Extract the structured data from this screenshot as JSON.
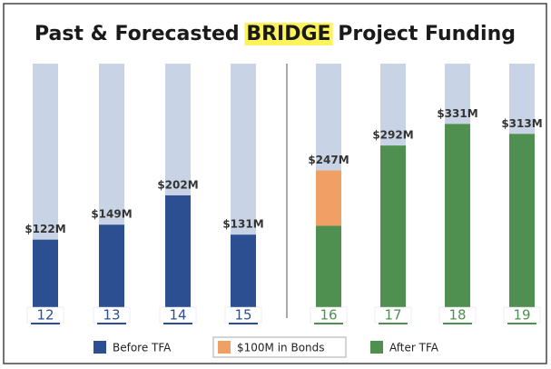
{
  "chart_data": {
    "type": "bar",
    "title": [
      "Past & Forecasted",
      "BRIDGE",
      "Project Funding"
    ],
    "categories": [
      "12",
      "13",
      "14",
      "15",
      "16",
      "17",
      "18",
      "19"
    ],
    "series": [
      {
        "name": "Before TFA",
        "color": "#2b4f91",
        "values": [
          122,
          149,
          202,
          131,
          null,
          null,
          null,
          null
        ]
      },
      {
        "name": "$100M in Bonds",
        "color": "#f0a065",
        "values": [
          null,
          null,
          null,
          null,
          100,
          null,
          null,
          null
        ]
      },
      {
        "name": "After TFA",
        "color": "#4f8f4f",
        "values": [
          null,
          null,
          null,
          null,
          147,
          292,
          331,
          313
        ]
      }
    ],
    "totals": [
      122,
      149,
      202,
      131,
      247,
      292,
      331,
      313
    ],
    "total_labels": [
      "$122M",
      "$149M",
      "$202M",
      "$131M",
      "$247M",
      "$292M",
      "$331M",
      "$313M"
    ],
    "ylim": [
      0,
      440
    ]
  }
}
